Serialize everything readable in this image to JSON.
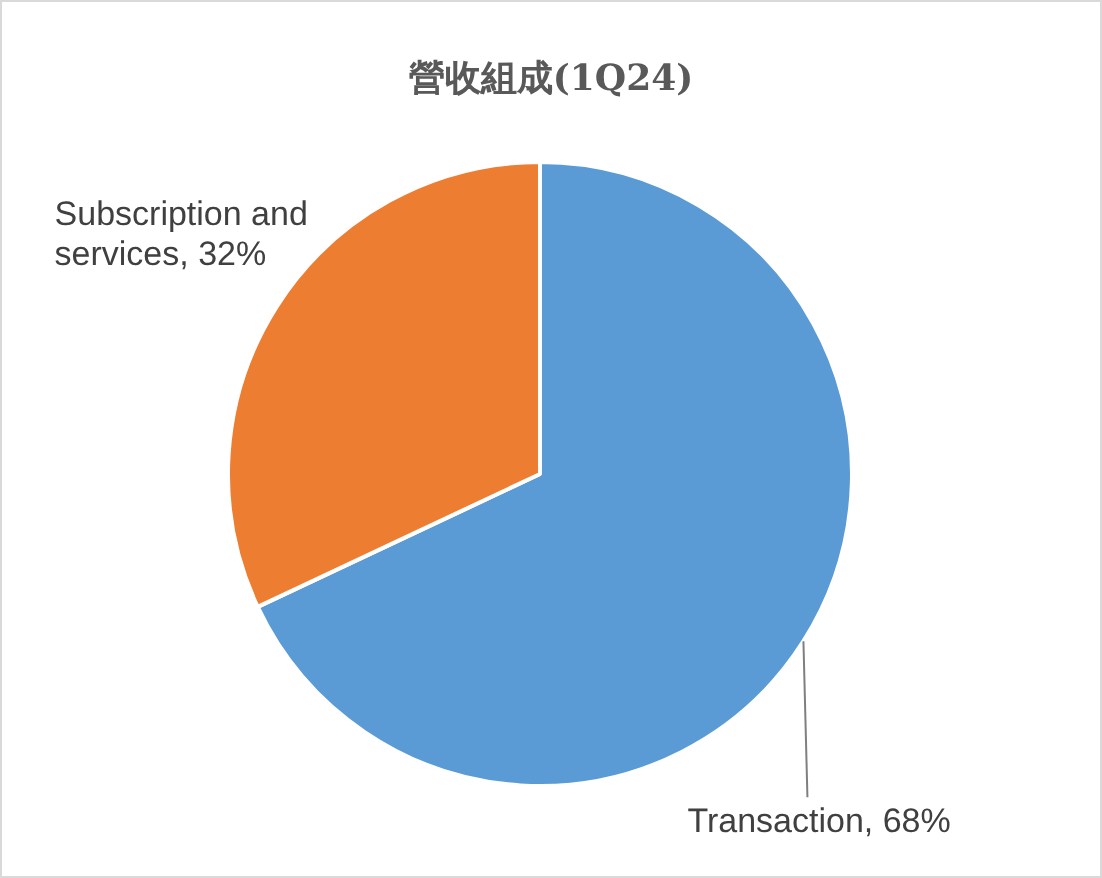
{
  "chart_data": {
    "type": "pie",
    "title": "營收組成(1Q24)",
    "categories": [
      "Transaction",
      "Subscription and services"
    ],
    "values": [
      68,
      32
    ],
    "colors": [
      "#5b9bd5",
      "#ed7d31"
    ],
    "value_labels": [
      "68%",
      "32%"
    ],
    "legend": false
  }
}
